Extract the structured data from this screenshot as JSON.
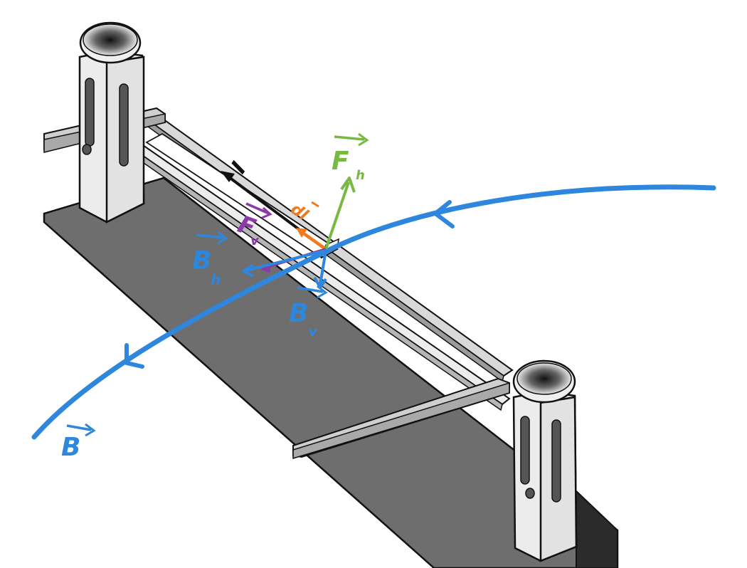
{
  "labels": {
    "current": "I",
    "dl": "dl",
    "F_v_main": "F",
    "F_v_sub": "v",
    "F_h_main": "F",
    "F_h_sub": "h",
    "B_h_main": "B",
    "B_h_sub": "h",
    "B_v_main": "B",
    "B_v_sub": "v",
    "B_main": "B"
  },
  "colors": {
    "field": "#2f86dd",
    "force_h": "#79b843",
    "force_v": "#8b3aa8",
    "dl": "#f07a1e",
    "current": "#111111",
    "ground": "#6e6e6e",
    "post": "#ececec"
  }
}
